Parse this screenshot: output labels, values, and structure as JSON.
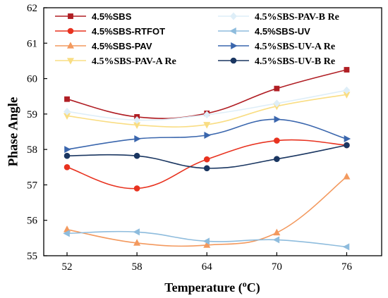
{
  "chart_data": {
    "type": "line",
    "xlabel": "Temperature (",
    "xlabel_sup": "o",
    "xlabel_suffix": "C)",
    "ylabel": "Phase Angle",
    "x": [
      52,
      58,
      64,
      70,
      76
    ],
    "x_ticks": [
      "52",
      "58",
      "64",
      "70",
      "76"
    ],
    "y_ticks": [
      "55",
      "56",
      "57",
      "58",
      "59",
      "60",
      "61",
      "62"
    ],
    "ylim": [
      55,
      62
    ],
    "grid": false,
    "legend_position": "top",
    "series": [
      {
        "name": "4.5%SBS",
        "color": "#b01e24",
        "marker": "square",
        "values": [
          59.42,
          58.92,
          59.02,
          59.72,
          60.25
        ]
      },
      {
        "name": "4.5%SBS-RTFOT",
        "color": "#e8321f",
        "marker": "circle",
        "values": [
          57.5,
          56.9,
          57.72,
          58.25,
          58.12
        ]
      },
      {
        "name": "4.5%SBS-PAV",
        "color": "#f3995e",
        "marker": "triangle-up",
        "values": [
          55.74,
          55.36,
          55.3,
          55.65,
          57.23
        ]
      },
      {
        "name": "4.5%SBS-PAV-A Re",
        "color": "#f9dd83",
        "marker": "triangle-down",
        "values": [
          58.95,
          58.69,
          58.7,
          59.22,
          59.55
        ]
      },
      {
        "name": "4.5%SBS-PAV-B Re",
        "color": "#deeef8",
        "marker": "diamond",
        "values": [
          59.07,
          58.83,
          58.98,
          59.3,
          59.67
        ]
      },
      {
        "name": "4.5%SBS-UV",
        "color": "#8ebcdd",
        "marker": "triangle-left",
        "values": [
          55.63,
          55.67,
          55.41,
          55.45,
          55.25
        ]
      },
      {
        "name": "4.5%SBS-UV-A Re",
        "color": "#3a66ad",
        "marker": "triangle-right",
        "values": [
          58.0,
          58.3,
          58.4,
          58.85,
          58.3
        ]
      },
      {
        "name": "4.5%SBS-UV-B Re",
        "color": "#1a3661",
        "marker": "circle",
        "values": [
          57.82,
          57.82,
          57.47,
          57.73,
          58.12
        ]
      }
    ]
  }
}
